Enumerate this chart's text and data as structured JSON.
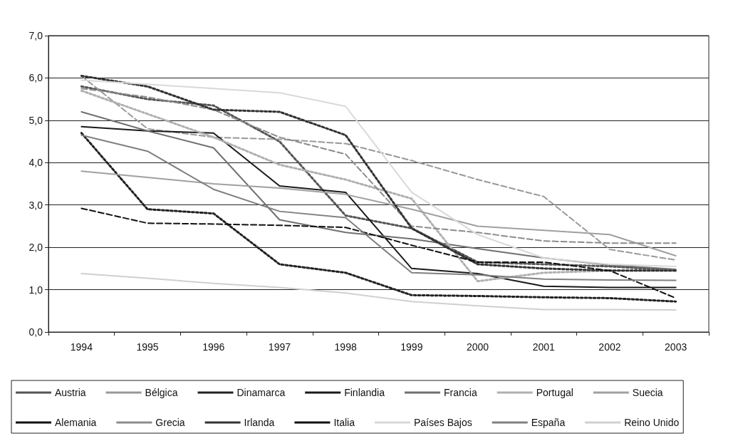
{
  "chart_data": {
    "type": "line",
    "categories": [
      "1994",
      "1995",
      "1996",
      "1997",
      "1998",
      "1999",
      "2000",
      "2001",
      "2002",
      "2003"
    ],
    "ylim": [
      0,
      7
    ],
    "yticks": [
      {
        "value": 0,
        "label": "0,0"
      },
      {
        "value": 1,
        "label": "1,0"
      },
      {
        "value": 2,
        "label": "2,0"
      },
      {
        "value": 3,
        "label": "3,0"
      },
      {
        "value": 4,
        "label": "4,0"
      },
      {
        "value": 5,
        "label": "5,0"
      },
      {
        "value": 6,
        "label": "6,0"
      },
      {
        "value": 7,
        "label": "7,0"
      }
    ],
    "grid": "y",
    "legend": "bottom",
    "marker": "none",
    "series": [
      {
        "name": "Austria",
        "color": "#555555",
        "line_style": "dotted",
        "values": [
          5.8,
          5.5,
          5.35,
          4.5,
          2.75,
          2.45,
          1.65,
          1.6,
          1.55,
          1.45
        ]
      },
      {
        "name": "Bélgica",
        "color": "#999999",
        "line_style": "dashed",
        "values": [
          6.05,
          4.8,
          4.6,
          4.55,
          4.45,
          4.05,
          3.6,
          3.2,
          1.95,
          1.7
        ]
      },
      {
        "name": "Dinamarca",
        "color": "#222222",
        "line_style": "dotted",
        "values": [
          4.7,
          2.9,
          2.8,
          1.6,
          1.4,
          0.87,
          0.85,
          0.82,
          0.8,
          0.72
        ]
      },
      {
        "name": "Finlandia",
        "color": "#1a1a1a",
        "line_style": "solid",
        "values": [
          4.85,
          4.75,
          4.7,
          3.45,
          3.3,
          1.5,
          1.38,
          1.08,
          1.05,
          1.05
        ]
      },
      {
        "name": "Francia",
        "color": "#707070",
        "line_style": "solid",
        "values": [
          5.2,
          4.75,
          4.35,
          2.65,
          2.35,
          2.2,
          1.97,
          1.75,
          1.58,
          1.48
        ]
      },
      {
        "name": "Portugal",
        "color": "#b0b0b0",
        "line_style": "dotted",
        "values": [
          5.7,
          5.15,
          4.6,
          3.95,
          3.6,
          3.15,
          1.2,
          1.4,
          1.45,
          1.45
        ]
      },
      {
        "name": "Suecia",
        "color": "#a0a0a0",
        "line_style": "solid",
        "values": [
          3.8,
          3.65,
          3.5,
          3.4,
          3.25,
          2.9,
          2.5,
          2.4,
          2.3,
          1.8
        ]
      },
      {
        "name": "Alemania",
        "color": "#111111",
        "line_style": "solid",
        "values": [
          null,
          null,
          null,
          null,
          null,
          null,
          null,
          null,
          null,
          null
        ]
      },
      {
        "name": "Grecia",
        "color": "#8c8c8c",
        "line_style": "dashed",
        "values": [
          5.75,
          5.55,
          5.25,
          4.6,
          4.2,
          2.5,
          2.35,
          2.15,
          2.1,
          2.1
        ]
      },
      {
        "name": "Irlanda",
        "color": "#333333",
        "line_style": "dotted",
        "values": [
          6.05,
          5.8,
          5.25,
          5.2,
          4.65,
          2.45,
          1.6,
          1.5,
          1.45,
          1.45
        ]
      },
      {
        "name": "Italia",
        "color": "#111111",
        "line_style": "dashed",
        "values": [
          2.92,
          2.57,
          2.55,
          2.52,
          2.47,
          2.05,
          1.65,
          1.65,
          1.45,
          0.8
        ]
      },
      {
        "name": "Países Bajos",
        "color": "#d9d9d9",
        "line_style": "solid",
        "values": [
          5.95,
          5.85,
          5.75,
          5.65,
          5.33,
          3.3,
          2.3,
          1.75,
          1.6,
          1.55
        ]
      },
      {
        "name": "España",
        "color": "#808080",
        "line_style": "solid",
        "values": [
          4.65,
          4.27,
          3.37,
          2.85,
          2.7,
          1.4,
          1.35,
          1.25,
          1.23,
          1.22
        ]
      },
      {
        "name": "Reino Unido",
        "color": "#d0d0d0",
        "line_style": "solid",
        "values": [
          1.38,
          1.27,
          1.15,
          1.05,
          0.92,
          0.72,
          0.62,
          0.53,
          0.53,
          0.52
        ]
      }
    ]
  }
}
